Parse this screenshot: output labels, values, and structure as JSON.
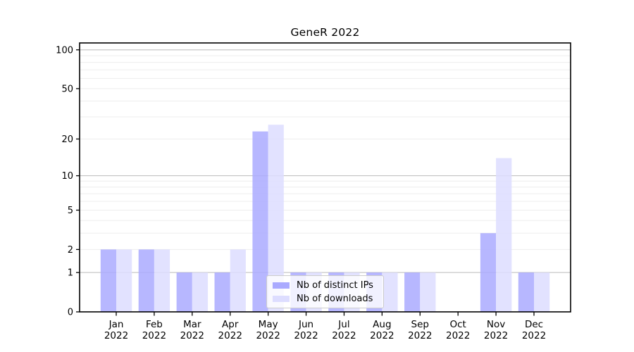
{
  "chart_data": {
    "type": "bar",
    "title": "GeneR 2022",
    "categories": [
      "Jan 2022",
      "Feb 2022",
      "Mar 2022",
      "Apr 2022",
      "May 2022",
      "Jun 2022",
      "Jul 2022",
      "Aug 2022",
      "Sep 2022",
      "Oct 2022",
      "Nov 2022",
      "Dec 2022"
    ],
    "series": [
      {
        "name": "Nb of distinct IPs",
        "color": "#aaaaff",
        "values": [
          2,
          2,
          1,
          1,
          23,
          1,
          1,
          1,
          1,
          0,
          3,
          1
        ]
      },
      {
        "name": "Nb of downloads",
        "color": "#ddddff",
        "values": [
          2,
          2,
          1,
          2,
          26,
          1,
          1,
          1,
          1,
          0,
          14,
          1
        ]
      }
    ],
    "xlabel": "",
    "ylabel": "",
    "yscale": "log1p",
    "ylim": [
      0,
      113
    ],
    "yticks": [
      0,
      1,
      2,
      5,
      10,
      20,
      50,
      100
    ],
    "gridlines": {
      "major": [
        1,
        10,
        100
      ],
      "minor": [
        2,
        3,
        4,
        5,
        6,
        7,
        8,
        9,
        20,
        30,
        40,
        50,
        60,
        70,
        80,
        90
      ],
      "major_color": "#c2c2c2",
      "minor_color": "#ededed"
    },
    "legend_position": "lower center",
    "axis_color": "#000000",
    "text_color": "#000000"
  }
}
